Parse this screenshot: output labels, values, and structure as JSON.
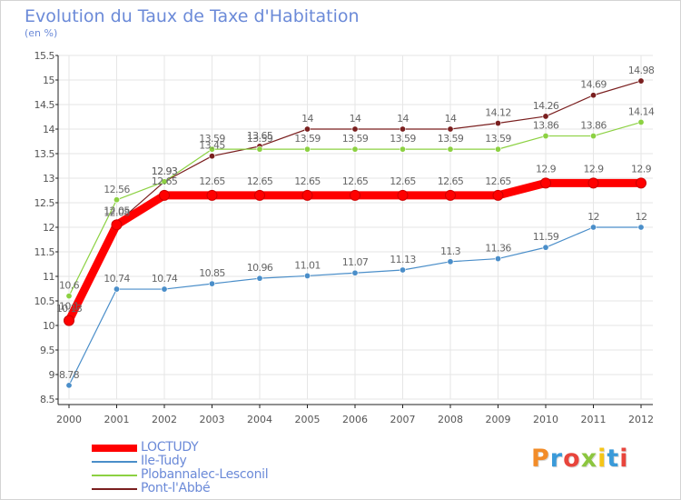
{
  "header": {
    "title": "Evolution du Taux de Taxe d'Habitation",
    "subtitle": "(en %)"
  },
  "logo": {
    "text": "Proxiti",
    "colors": [
      "#f28c28",
      "#3a9ad9",
      "#e8453c",
      "#8cc63f",
      "#f5c518",
      "#3a9ad9",
      "#e8453c"
    ]
  },
  "chart_data": {
    "type": "line",
    "title": "Evolution du Taux de Taxe d'Habitation",
    "subtitle": "(en %)",
    "xlabel": "",
    "ylabel": "",
    "x": [
      "2000",
      "2001",
      "2002",
      "2003",
      "2004",
      "2005",
      "2006",
      "2007",
      "2008",
      "2009",
      "2010",
      "2011",
      "2012"
    ],
    "ylim": [
      8.5,
      15.5
    ],
    "yticks": [
      "8.5",
      "9",
      "9.5",
      "10",
      "10.5",
      "11",
      "11.5",
      "12",
      "12.5",
      "13",
      "13.5",
      "14",
      "14.5",
      "15",
      "15.5"
    ],
    "grid": true,
    "legend_position": "bottom-left",
    "series": [
      {
        "name": "Pont-l'Abbé",
        "color": "#7a1f1f",
        "values": [
          10.13,
          12.08,
          12.93,
          13.45,
          13.65,
          14,
          14,
          14,
          14,
          14.12,
          14.26,
          14.69,
          14.98
        ],
        "labels": [
          "10.13",
          "12.08",
          "12.93",
          "13.45",
          "13.65",
          "14",
          "14",
          "14",
          "14",
          "14.12",
          "14.26",
          "14.69",
          "14.98"
        ]
      },
      {
        "name": "Plobannalec-Lesconil",
        "color": "#8cd142",
        "values": [
          10.6,
          12.56,
          12.93,
          13.59,
          13.59,
          13.59,
          13.59,
          13.59,
          13.59,
          13.59,
          13.86,
          13.86,
          14.14
        ],
        "labels": [
          "10.6",
          "12.56",
          "12.93",
          "13.59",
          "13.59",
          "13.59",
          "13.59",
          "13.59",
          "13.59",
          "13.59",
          "13.86",
          "13.86",
          "14.14"
        ]
      },
      {
        "name": "Ile-Tudy",
        "color": "#4a8ec9",
        "values": [
          8.78,
          10.74,
          10.74,
          10.85,
          10.96,
          11.01,
          11.07,
          11.13,
          11.3,
          11.36,
          11.59,
          12,
          12
        ],
        "labels": [
          "8.78",
          "10.74",
          "10.74",
          "10.85",
          "10.96",
          "11.01",
          "11.07",
          "11.13",
          "11.3",
          "11.36",
          "11.59",
          "12",
          "12"
        ]
      },
      {
        "name": "LOCTUDY",
        "color": "#ff0000",
        "values": [
          10.1,
          12.05,
          12.65,
          12.65,
          12.65,
          12.65,
          12.65,
          12.65,
          12.65,
          12.65,
          12.9,
          12.9,
          12.9
        ],
        "labels": [
          "10.1",
          "12.05",
          "12.65",
          "12.65",
          "12.65",
          "12.65",
          "12.65",
          "12.65",
          "12.65",
          "12.65",
          "12.9",
          "12.9",
          "12.9"
        ]
      }
    ]
  },
  "legend": [
    {
      "label": "LOCTUDY",
      "color": "#ff0000"
    },
    {
      "label": "Ile-Tudy",
      "color": "#4a8ec9"
    },
    {
      "label": "Plobannalec-Lesconil",
      "color": "#8cd142"
    },
    {
      "label": "Pont-l'Abbé",
      "color": "#7a1f1f"
    }
  ]
}
